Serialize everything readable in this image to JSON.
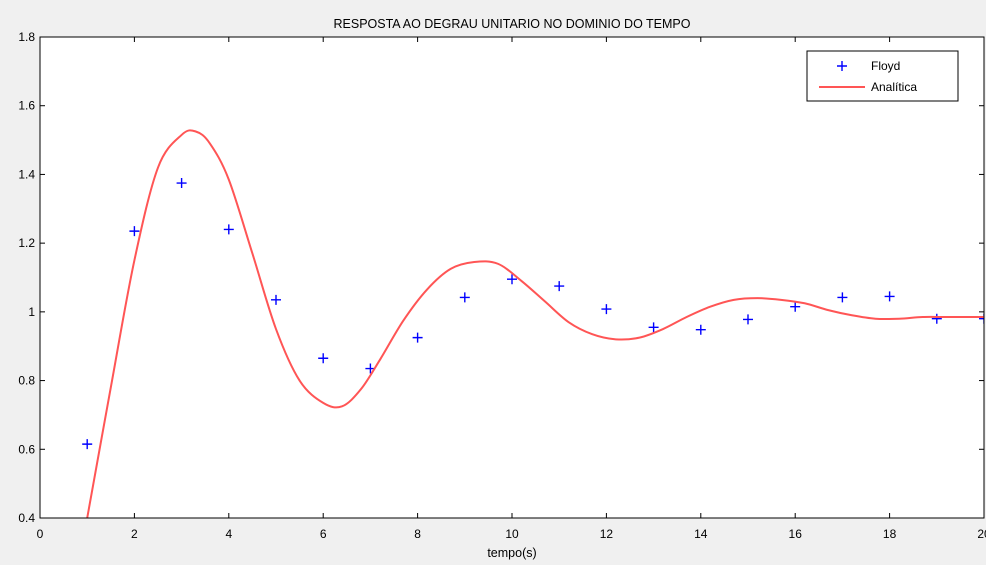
{
  "chart_data": {
    "type": "line",
    "title": "RESPOSTA AO DEGRAU UNITARIO NO DOMINIO DO TEMPO",
    "xlabel": "tempo(s)",
    "ylabel": "",
    "xlim": [
      0,
      20
    ],
    "ylim": [
      0.4,
      1.8
    ],
    "xticks": [
      0,
      2,
      4,
      6,
      8,
      10,
      12,
      14,
      16,
      18,
      20
    ],
    "yticks": [
      0.4,
      0.6,
      0.8,
      1,
      1.2,
      1.4,
      1.6,
      1.8
    ],
    "grid": false,
    "legend_position": "top-right",
    "series": [
      {
        "name": "Floyd",
        "style": "marker-plus",
        "color": "#0000ff",
        "x": [
          1,
          2,
          3,
          4,
          5,
          6,
          7,
          8,
          9,
          10,
          11,
          12,
          13,
          14,
          15,
          16,
          17,
          18,
          19,
          20
        ],
        "y": [
          0.615,
          1.235,
          1.375,
          1.24,
          1.035,
          0.865,
          0.835,
          0.925,
          1.042,
          1.095,
          1.075,
          1.008,
          0.955,
          0.948,
          0.978,
          1.015,
          1.042,
          1.045,
          0.98,
          0.98
        ]
      },
      {
        "name": "Analítica",
        "style": "line",
        "color": "#ff5555",
        "x": [
          1,
          1.5,
          2,
          2.5,
          3,
          3.3,
          3.6,
          4,
          4.5,
          5,
          5.5,
          6,
          6.4,
          6.8,
          7.2,
          7.7,
          8.2,
          8.7,
          9.2,
          9.7,
          10.2,
          10.7,
          11.2,
          11.7,
          12.2,
          12.7,
          13.2,
          13.7,
          14.2,
          14.7,
          15.2,
          15.7,
          16.2,
          16.7,
          17.2,
          17.7,
          18.2,
          18.7,
          19.2,
          19.7,
          20
        ],
        "y": [
          0.4,
          0.78,
          1.15,
          1.42,
          1.515,
          1.525,
          1.49,
          1.385,
          1.17,
          0.95,
          0.8,
          0.735,
          0.725,
          0.775,
          0.86,
          0.975,
          1.065,
          1.125,
          1.145,
          1.14,
          1.09,
          1.03,
          0.97,
          0.935,
          0.92,
          0.925,
          0.95,
          0.985,
          1.015,
          1.035,
          1.04,
          1.035,
          1.025,
          1.005,
          0.99,
          0.98,
          0.98,
          0.985,
          0.985,
          0.985,
          0.985
        ]
      }
    ]
  }
}
